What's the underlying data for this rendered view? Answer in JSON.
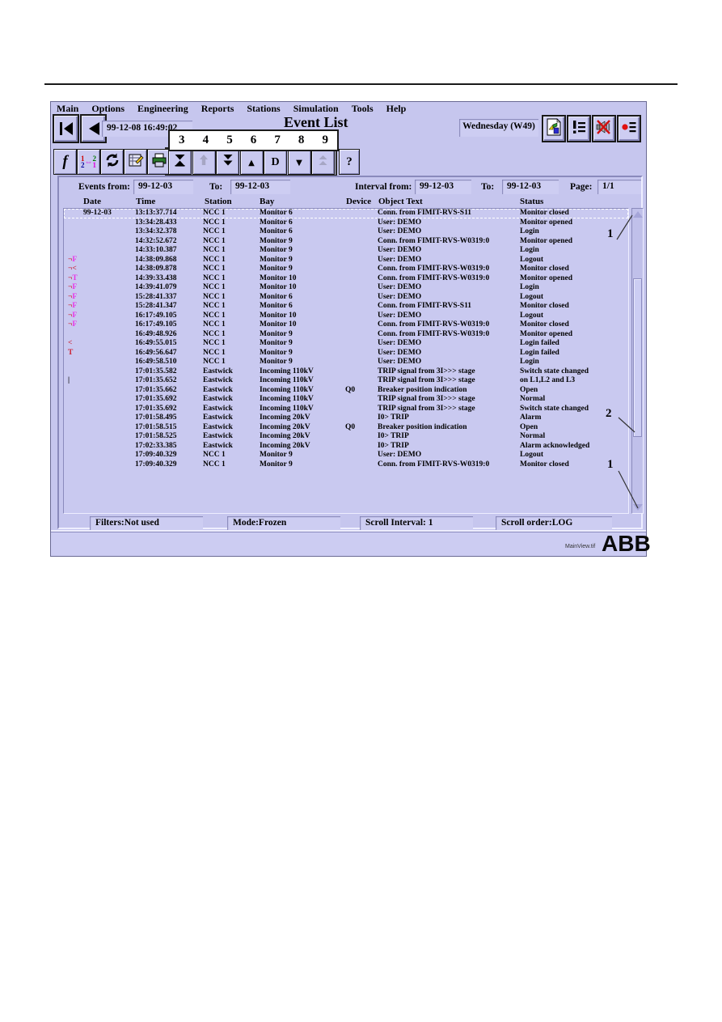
{
  "document": {
    "footer_file_label": "MainView.tif",
    "brand": "ABB"
  },
  "colors": {
    "window_bg": "#c6c6ee",
    "field_bg": "#cdcdf2",
    "marker_red": "#cc2233",
    "marker_magenta": "#e833e8"
  },
  "menu": {
    "items": [
      "Main",
      "Options",
      "Engineering",
      "Reports",
      "Stations",
      "Simulation",
      "Tools",
      "Help"
    ]
  },
  "titlebar": {
    "datetime": "99-12-08 16:49:02",
    "title": "Event List",
    "weekday": "Wednesday (W49)",
    "window_icons": [
      "chart-page-icon",
      "alarm-list-icon",
      "audio-alarm-off-icon",
      "event-list-icon"
    ]
  },
  "toolbar": {
    "buttons": [
      {
        "name": "filter-function-button",
        "icon": "function-icon",
        "glyph": "f"
      },
      {
        "name": "sort-order-button",
        "icon": "swap-1-2-icon"
      },
      {
        "name": "refresh-button",
        "icon": "refresh-icon"
      },
      {
        "name": "edit-notepad-button",
        "icon": "notepad-edit-icon"
      },
      {
        "name": "print-button",
        "icon": "printer-icon"
      },
      {
        "name": "scroll-to-end-button",
        "icon": "scroll-to-end-icon",
        "grouped": true
      },
      {
        "name": "scroll-up-button",
        "icon": "arrow-up-icon",
        "disabled": true,
        "grouped": true
      },
      {
        "name": "fast-scroll-down-button",
        "icon": "double-down-icon",
        "grouped": true
      },
      {
        "name": "step-up-button",
        "icon": "triangle-up-icon",
        "glyph": "▲",
        "grouped": true
      },
      {
        "name": "date-button",
        "icon": "letter-d-icon",
        "glyph": "D",
        "grouped": true
      },
      {
        "name": "step-down-button",
        "icon": "triangle-down-icon",
        "glyph": "▼",
        "grouped": true
      },
      {
        "name": "page-up-button",
        "icon": "double-up-icon",
        "disabled": true,
        "grouped": true
      },
      {
        "name": "help-button",
        "icon": "question-icon",
        "glyph": "?"
      }
    ]
  },
  "callouts": {
    "toolbar_numbers": [
      "3",
      "4",
      "5",
      "6",
      "7",
      "8",
      "9"
    ],
    "scrollbar_top": "1",
    "scrollbar_middle": "2",
    "scrollbar_bottom": "1"
  },
  "filters": {
    "events_from_label": "Events from:",
    "events_from": "99-12-03",
    "to_label_1": "To:",
    "events_to": "99-12-03",
    "interval_from_label": "Interval from:",
    "interval_from": "99-12-03",
    "to_label_2": "To:",
    "interval_to": "99-12-03",
    "page_label": "Page:",
    "page": "1/1"
  },
  "table": {
    "columns": [
      "Date",
      "Time",
      "Station",
      "Bay",
      "Device",
      "Object Text",
      "Status"
    ],
    "rows": [
      {
        "focus": true,
        "marker": [],
        "date": "99-12-03",
        "time": "13:13:37.714",
        "station": "NCC 1",
        "bay": "Monitor 6",
        "device": "",
        "object": "Conn. from FIMIT-RVS-S11",
        "status": "Monitor closed"
      },
      {
        "marker": [],
        "date": "",
        "time": "13:34:28.433",
        "station": "NCC 1",
        "bay": "Monitor 6",
        "device": "",
        "object": "User: DEMO",
        "status": "Monitor opened"
      },
      {
        "marker": [],
        "date": "",
        "time": "13:34:32.378",
        "station": "NCC 1",
        "bay": "Monitor 6",
        "device": "",
        "object": "User: DEMO",
        "status": "Login"
      },
      {
        "marker": [],
        "date": "",
        "time": "14:32:52.672",
        "station": "NCC 1",
        "bay": "Monitor 9",
        "device": "",
        "object": "Conn. from FIMIT-RVS-W0319:0",
        "status": "Monitor opened"
      },
      {
        "marker": [],
        "date": "",
        "time": "14:33:10.387",
        "station": "NCC 1",
        "bay": "Monitor 9",
        "device": "",
        "object": "User: DEMO",
        "status": "Login"
      },
      {
        "marker": [
          {
            "t": "¬",
            "c": "red"
          },
          {
            "t": "F",
            "c": "magenta"
          }
        ],
        "date": "",
        "time": "14:38:09.868",
        "station": "NCC 1",
        "bay": "Monitor 9",
        "device": "",
        "object": "User: DEMO",
        "status": "Logout"
      },
      {
        "marker": [
          {
            "t": "¬",
            "c": "red"
          },
          {
            "t": "<",
            "c": "red"
          }
        ],
        "date": "",
        "time": "14:38:09.878",
        "station": "NCC 1",
        "bay": "Monitor 9",
        "device": "",
        "object": "Conn. from FIMIT-RVS-W0319:0",
        "status": "Monitor closed"
      },
      {
        "marker": [
          {
            "t": "¬",
            "c": "red"
          },
          {
            "t": "T",
            "c": "magenta"
          }
        ],
        "date": "",
        "time": "14:39:33.438",
        "station": "NCC 1",
        "bay": "Monitor 10",
        "device": "",
        "object": "Conn. from FIMIT-RVS-W0319:0",
        "status": "Monitor opened"
      },
      {
        "marker": [
          {
            "t": "¬",
            "c": "red"
          },
          {
            "t": "F",
            "c": "magenta"
          }
        ],
        "date": "",
        "time": "14:39:41.079",
        "station": "NCC 1",
        "bay": "Monitor 10",
        "device": "",
        "object": "User: DEMO",
        "status": "Login"
      },
      {
        "marker": [
          {
            "t": "¬",
            "c": "red"
          },
          {
            "t": "F",
            "c": "magenta"
          }
        ],
        "date": "",
        "time": "15:28:41.337",
        "station": "NCC 1",
        "bay": "Monitor 6",
        "device": "",
        "object": "User: DEMO",
        "status": "Logout"
      },
      {
        "marker": [
          {
            "t": "¬",
            "c": "red"
          },
          {
            "t": "F",
            "c": "magenta"
          }
        ],
        "date": "",
        "time": "15:28:41.347",
        "station": "NCC 1",
        "bay": "Monitor 6",
        "device": "",
        "object": "Conn. from FIMIT-RVS-S11",
        "status": "Monitor closed"
      },
      {
        "marker": [
          {
            "t": "¬",
            "c": "red"
          },
          {
            "t": "F",
            "c": "magenta"
          }
        ],
        "date": "",
        "time": "16:17:49.105",
        "station": "NCC 1",
        "bay": "Monitor 10",
        "device": "",
        "object": "User: DEMO",
        "status": "Logout"
      },
      {
        "marker": [
          {
            "t": "¬",
            "c": "red"
          },
          {
            "t": "F",
            "c": "magenta"
          }
        ],
        "date": "",
        "time": "16:17:49.105",
        "station": "NCC 1",
        "bay": "Monitor 10",
        "device": "",
        "object": "Conn. from FIMIT-RVS-W0319:0",
        "status": "Monitor closed"
      },
      {
        "marker": [],
        "date": "",
        "time": "16:49:48.926",
        "station": "NCC 1",
        "bay": "Monitor 9",
        "device": "",
        "object": "Conn. from FIMIT-RVS-W0319:0",
        "status": "Monitor opened"
      },
      {
        "marker": [
          {
            "t": "<",
            "c": "red"
          }
        ],
        "date": "",
        "time": "16:49:55.015",
        "station": "NCC 1",
        "bay": "Monitor 9",
        "device": "",
        "object": "User: DEMO",
        "status": "Login failed"
      },
      {
        "marker": [
          {
            "t": "T",
            "c": "red"
          }
        ],
        "date": "",
        "time": "16:49:56.647",
        "station": "NCC 1",
        "bay": "Monitor 9",
        "device": "",
        "object": "User: DEMO",
        "status": "Login failed"
      },
      {
        "marker": [],
        "date": "",
        "time": "16:49:58.510",
        "station": "NCC 1",
        "bay": "Monitor 9",
        "device": "",
        "object": "User: DEMO",
        "status": "Login"
      },
      {
        "marker": [],
        "date": "",
        "time": "17:01:35.582",
        "station": "Eastwick",
        "bay": "Incoming 110kV",
        "device": "",
        "object": "TRIP signal from 3I>>> stage",
        "status": "Switch state changed"
      },
      {
        "marker": [
          {
            "t": "|",
            "c": "black"
          }
        ],
        "date": "",
        "time": "17:01:35.652",
        "station": "Eastwick",
        "bay": "Incoming 110kV",
        "device": "",
        "object": "TRIP signal from 3I>>> stage",
        "status": "on L1,L2 and L3"
      },
      {
        "marker": [],
        "date": "",
        "time": "17:01:35.662",
        "station": "Eastwick",
        "bay": "Incoming 110kV",
        "device": "Q0",
        "object": "Breaker position indication",
        "status": "Open"
      },
      {
        "marker": [],
        "date": "",
        "time": "17:01:35.692",
        "station": "Eastwick",
        "bay": "Incoming 110kV",
        "device": "",
        "object": "TRIP signal from 3I>>> stage",
        "status": "Normal"
      },
      {
        "marker": [],
        "date": "",
        "time": "17:01:35.692",
        "station": "Eastwick",
        "bay": "Incoming 110kV",
        "device": "",
        "object": "TRIP signal from 3I>>> stage",
        "status": "Switch state changed"
      },
      {
        "marker": [],
        "date": "",
        "time": "17:01:58.495",
        "station": "Eastwick",
        "bay": "Incoming 20kV",
        "device": "",
        "object": "I0> TRIP",
        "status": "Alarm"
      },
      {
        "marker": [],
        "date": "",
        "time": "17:01:58.515",
        "station": "Eastwick",
        "bay": "Incoming 20kV",
        "device": "Q0",
        "object": "Breaker position indication",
        "status": "Open"
      },
      {
        "marker": [],
        "date": "",
        "time": "17:01:58.525",
        "station": "Eastwick",
        "bay": "Incoming 20kV",
        "device": "",
        "object": "I0> TRIP",
        "status": "Normal"
      },
      {
        "marker": [],
        "date": "",
        "time": "17:02:33.385",
        "station": "Eastwick",
        "bay": "Incoming 20kV",
        "device": "",
        "object": "I0> TRIP",
        "status": "Alarm acknowledged"
      },
      {
        "marker": [],
        "date": "",
        "time": "17:09:40.329",
        "station": "NCC 1",
        "bay": "Monitor 9",
        "device": "",
        "object": "User: DEMO",
        "status": "Logout"
      },
      {
        "marker": [],
        "date": "",
        "time": "17:09:40.329",
        "station": "NCC 1",
        "bay": "Monitor 9",
        "device": "",
        "object": "Conn. from FIMIT-RVS-W0319:0",
        "status": "Monitor closed"
      }
    ]
  },
  "statusbar": {
    "filters": "Filters:Not used",
    "mode": "Mode:Frozen",
    "scroll_interval": "Scroll Interval: 1",
    "scroll_order": "Scroll order:LOG"
  }
}
